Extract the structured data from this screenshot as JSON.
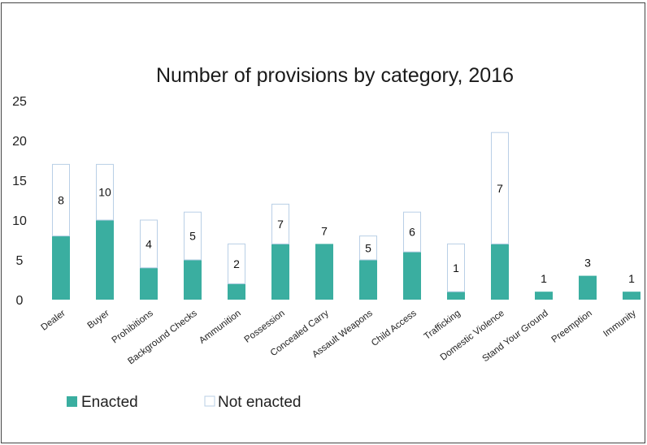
{
  "chart_data": {
    "type": "bar",
    "stacked": true,
    "title": "Number of provisions by category, 2016",
    "xlabel": "",
    "ylabel": "",
    "ylim": [
      0,
      25
    ],
    "yticks": [
      "0",
      "5",
      "10",
      "15",
      "20",
      "25"
    ],
    "grid": false,
    "legend_position": "bottom-left",
    "categories": [
      "Dealer",
      "Buyer",
      "Prohibitions",
      "Background Checks",
      "Ammunition",
      "Possession",
      "Concealed Carry",
      "Assault Weapons",
      "Child Access",
      "Trafficking",
      "Domestic Violence",
      "Stand Your Ground",
      "Preemption",
      "Immunity"
    ],
    "series": [
      {
        "name": "Enacted",
        "color": "#3aaea0",
        "values": [
          8,
          10,
          4,
          5,
          2,
          7,
          7,
          5,
          6,
          1,
          7,
          1,
          3,
          1
        ]
      },
      {
        "name": "Not enacted",
        "color": "#ffffff",
        "stroke": "#b9cfe6",
        "values": [
          9,
          7,
          6,
          6,
          5,
          5,
          0,
          3,
          5,
          6,
          14,
          0,
          0,
          0
        ]
      }
    ],
    "data_labels": [
      "8",
      "10",
      "4",
      "5",
      "2",
      "7",
      "7",
      "5",
      "6",
      "1",
      "7",
      "1",
      "3",
      "1"
    ]
  }
}
